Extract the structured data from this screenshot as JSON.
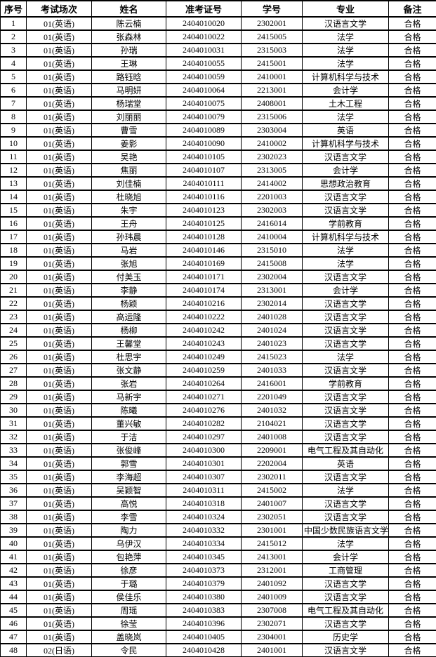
{
  "table": {
    "headers": [
      "序号",
      "考试场次",
      "姓名",
      "准考证号",
      "学号",
      "专业",
      "备注"
    ],
    "rows": [
      [
        "1",
        "01(英语)",
        "陈云楠",
        "2404010020",
        "2302001",
        "汉语言文学",
        "合格"
      ],
      [
        "2",
        "01(英语)",
        "张森林",
        "2404010022",
        "2415005",
        "法学",
        "合格"
      ],
      [
        "3",
        "01(英语)",
        "孙瑞",
        "2404010031",
        "2315003",
        "法学",
        "合格"
      ],
      [
        "4",
        "01(英语)",
        "王琳",
        "2404010055",
        "2415001",
        "法学",
        "合格"
      ],
      [
        "5",
        "01(英语)",
        "路钰晗",
        "2404010059",
        "2410001",
        "计算机科学与技术",
        "合格"
      ],
      [
        "6",
        "01(英语)",
        "马明妍",
        "2404010064",
        "2213001",
        "会计学",
        "合格"
      ],
      [
        "7",
        "01(英语)",
        "杨瑞堂",
        "2404010075",
        "2408001",
        "土木工程",
        "合格"
      ],
      [
        "8",
        "01(英语)",
        "刘丽丽",
        "2404010079",
        "2315006",
        "法学",
        "合格"
      ],
      [
        "9",
        "01(英语)",
        "曹雪",
        "2404010089",
        "2303004",
        "英语",
        "合格"
      ],
      [
        "10",
        "01(英语)",
        "姜影",
        "2404010090",
        "2410002",
        "计算机科学与技术",
        "合格"
      ],
      [
        "11",
        "01(英语)",
        "吴艳",
        "2404010105",
        "2302023",
        "汉语言文学",
        "合格"
      ],
      [
        "12",
        "01(英语)",
        "焦丽",
        "2404010107",
        "2313005",
        "会计学",
        "合格"
      ],
      [
        "13",
        "01(英语)",
        "刘佳楠",
        "2404010111",
        "2414002",
        "思想政治教育",
        "合格"
      ],
      [
        "14",
        "01(英语)",
        "杜晓旭",
        "2404010116",
        "2201003",
        "汉语言文学",
        "合格"
      ],
      [
        "15",
        "01(英语)",
        "朱宇",
        "2404010123",
        "2302003",
        "汉语言文学",
        "合格"
      ],
      [
        "16",
        "01(英语)",
        "王舟",
        "2404010125",
        "2416014",
        "学前教育",
        "合格"
      ],
      [
        "17",
        "01(英语)",
        "孙玮晨",
        "2404010128",
        "2410004",
        "计算机科学与技术",
        "合格"
      ],
      [
        "18",
        "01(英语)",
        "马岩",
        "2404010146",
        "2315010",
        "法学",
        "合格"
      ],
      [
        "19",
        "01(英语)",
        "张旭",
        "2404010169",
        "2415008",
        "法学",
        "合格"
      ],
      [
        "20",
        "01(英语)",
        "付美玉",
        "2404010171",
        "2302004",
        "汉语言文学",
        "合格"
      ],
      [
        "21",
        "01(英语)",
        "李静",
        "2404010174",
        "2313001",
        "会计学",
        "合格"
      ],
      [
        "22",
        "01(英语)",
        "杨颖",
        "2404010216",
        "2302014",
        "汉语言文学",
        "合格"
      ],
      [
        "23",
        "01(英语)",
        "高运隆",
        "2404010222",
        "2401028",
        "汉语言文学",
        "合格"
      ],
      [
        "24",
        "01(英语)",
        "杨柳",
        "2404010242",
        "2401024",
        "汉语言文学",
        "合格"
      ],
      [
        "25",
        "01(英语)",
        "王馨堂",
        "2404010243",
        "2401023",
        "汉语言文学",
        "合格"
      ],
      [
        "26",
        "01(英语)",
        "杜思宇",
        "2404010249",
        "2415023",
        "法学",
        "合格"
      ],
      [
        "27",
        "01(英语)",
        "张文静",
        "2404010259",
        "2401033",
        "汉语言文学",
        "合格"
      ],
      [
        "28",
        "01(英语)",
        "张岩",
        "2404010264",
        "2416001",
        "学前教育",
        "合格"
      ],
      [
        "29",
        "01(英语)",
        "马新宇",
        "2404010271",
        "2201049",
        "汉语言文学",
        "合格"
      ],
      [
        "30",
        "01(英语)",
        "陈曦",
        "2404010276",
        "2401032",
        "汉语言文学",
        "合格"
      ],
      [
        "31",
        "01(英语)",
        "董兴敏",
        "2404010282",
        "2104021",
        "汉语言文学",
        "合格"
      ],
      [
        "32",
        "01(英语)",
        "于洁",
        "2404010297",
        "2401008",
        "汉语言文学",
        "合格"
      ],
      [
        "33",
        "01(英语)",
        "张俊峰",
        "2404010300",
        "2209001",
        "电气工程及其自动化",
        "合格"
      ],
      [
        "34",
        "01(英语)",
        "郭雪",
        "2404010301",
        "2202004",
        "英语",
        "合格"
      ],
      [
        "35",
        "01(英语)",
        "李海超",
        "2404010307",
        "2302011",
        "汉语言文学",
        "合格"
      ],
      [
        "36",
        "01(英语)",
        "吴颖智",
        "2404010311",
        "2415002",
        "法学",
        "合格"
      ],
      [
        "37",
        "01(英语)",
        "高悦",
        "2404010318",
        "2401007",
        "汉语言文学",
        "合格"
      ],
      [
        "38",
        "01(英语)",
        "李雪",
        "2404010324",
        "2302051",
        "汉语言文学",
        "合格"
      ],
      [
        "39",
        "01(英语)",
        "陶力",
        "2404010332",
        "2301001",
        "中国少数民族语言文学",
        "合格"
      ],
      [
        "40",
        "01(英语)",
        "乌伊汉",
        "2404010334",
        "2415012",
        "法学",
        "合格"
      ],
      [
        "41",
        "01(英语)",
        "包艳萍",
        "2404010345",
        "2413001",
        "会计学",
        "合格"
      ],
      [
        "42",
        "01(英语)",
        "徐彦",
        "2404010373",
        "2312001",
        "工商管理",
        "合格"
      ],
      [
        "43",
        "01(英语)",
        "于璐",
        "2404010379",
        "2401092",
        "汉语言文学",
        "合格"
      ],
      [
        "44",
        "01(英语)",
        "侯佳乐",
        "2404010380",
        "2401009",
        "汉语言文学",
        "合格"
      ],
      [
        "45",
        "01(英语)",
        "周瑶",
        "2404010383",
        "2307008",
        "电气工程及其自动化",
        "合格"
      ],
      [
        "46",
        "01(英语)",
        "徐莹",
        "2404010396",
        "2302071",
        "汉语言文学",
        "合格"
      ],
      [
        "47",
        "01(英语)",
        "盖晓岚",
        "2404010405",
        "2304001",
        "历史学",
        "合格"
      ],
      [
        "48",
        "02(日语)",
        "令民",
        "2404010428",
        "2401001",
        "汉语言文学",
        "合格"
      ]
    ]
  },
  "colors": {
    "text": "#000000",
    "border": "#000000",
    "background": "#ffffff"
  }
}
